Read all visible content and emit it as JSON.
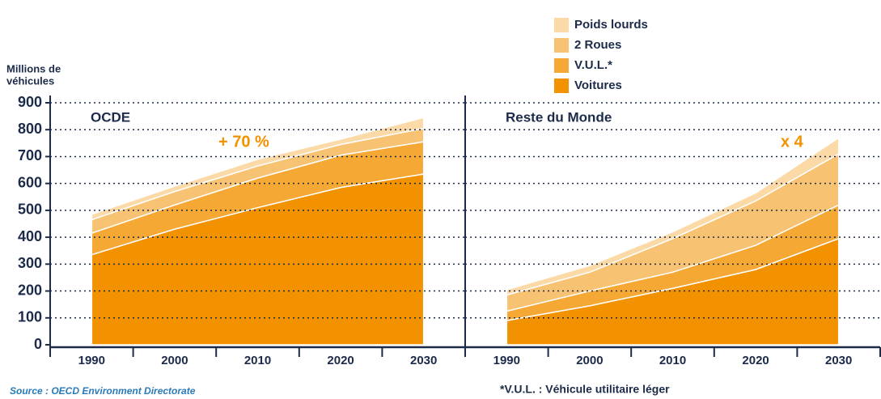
{
  "chart_data": [
    {
      "type": "stacked_area",
      "title": "OCDE",
      "annotation": "+ 70 %",
      "y_label": [
        "Millions de",
        "véhicules"
      ],
      "source": "Source : OECD Environment Directorate",
      "categories": [
        "1990",
        "2000",
        "2010",
        "2020",
        "2030"
      ],
      "series": [
        {
          "name": "Voitures",
          "color": "#f39200",
          "values": [
            335,
            430,
            510,
            585,
            635
          ]
        },
        {
          "name": "V.U.L.*",
          "color": "#f5a833",
          "values": [
            80,
            90,
            110,
            120,
            120
          ]
        },
        {
          "name": "2 Roues",
          "color": "#f8c273",
          "values": [
            50,
            50,
            45,
            40,
            50
          ]
        },
        {
          "name": "Poids lourds",
          "color": "#fbdaa8",
          "values": [
            20,
            20,
            25,
            20,
            40
          ]
        }
      ],
      "ylim": [
        0,
        900
      ],
      "yticks": [
        0,
        100,
        200,
        300,
        400,
        500,
        600,
        700,
        800,
        900
      ],
      "grid": true
    },
    {
      "type": "stacked_area",
      "title": "Reste du Monde",
      "annotation": "x 4",
      "footnote": "*V.U.L. : Véhicule utilitaire léger",
      "categories": [
        "1990",
        "2000",
        "2010",
        "2020",
        "2030"
      ],
      "series": [
        {
          "color": "#f39200",
          "values": [
            90,
            145,
            210,
            280,
            395
          ]
        },
        {
          "color": "#f5a833",
          "values": [
            35,
            55,
            60,
            90,
            125
          ]
        },
        {
          "color": "#f8c273",
          "values": [
            60,
            70,
            125,
            165,
            190
          ]
        },
        {
          "color": "#fbdaa8",
          "values": [
            20,
            25,
            25,
            30,
            60
          ]
        }
      ],
      "ylim": [
        0,
        900
      ],
      "yticks": [
        0,
        100,
        200,
        300,
        400,
        500,
        600,
        700,
        800,
        900
      ],
      "grid": true
    }
  ]
}
